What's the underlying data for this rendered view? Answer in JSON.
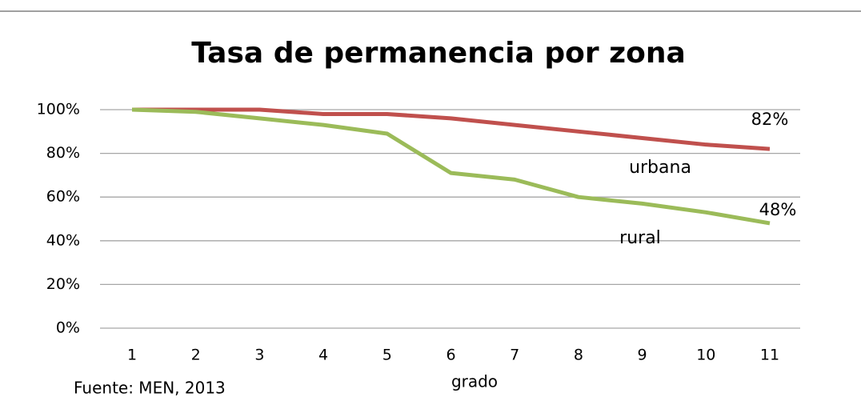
{
  "chart_data": {
    "type": "line",
    "title": "Tasa de permanencia por zona",
    "x_label": "grado",
    "source": "Fuente: MEN, 2013",
    "categories": [
      "1",
      "2",
      "3",
      "4",
      "5",
      "6",
      "7",
      "8",
      "9",
      "10",
      "11"
    ],
    "series": [
      {
        "name": "urbana",
        "color": "#c0504d",
        "values": [
          100,
          100,
          100,
          98,
          98,
          96,
          93,
          90,
          87,
          84,
          82
        ],
        "value_labels": [
          null,
          null,
          null,
          null,
          null,
          null,
          null,
          null,
          null,
          null,
          "82%"
        ]
      },
      {
        "name": "rural",
        "color": "#9bbb59",
        "values": [
          100,
          99,
          96,
          93,
          89,
          71,
          68,
          60,
          57,
          53,
          48
        ],
        "value_labels": [
          null,
          null,
          null,
          null,
          null,
          null,
          null,
          null,
          null,
          null,
          "48%"
        ]
      }
    ],
    "ylim": [
      0,
      100
    ],
    "yticks": [
      {
        "value": 0,
        "label": "0%"
      },
      {
        "value": 20,
        "label": "20%"
      },
      {
        "value": 40,
        "label": "40%"
      },
      {
        "value": 60,
        "label": "60%"
      },
      {
        "value": 80,
        "label": "80%"
      },
      {
        "value": 100,
        "label": "100%"
      }
    ],
    "grid": true
  }
}
